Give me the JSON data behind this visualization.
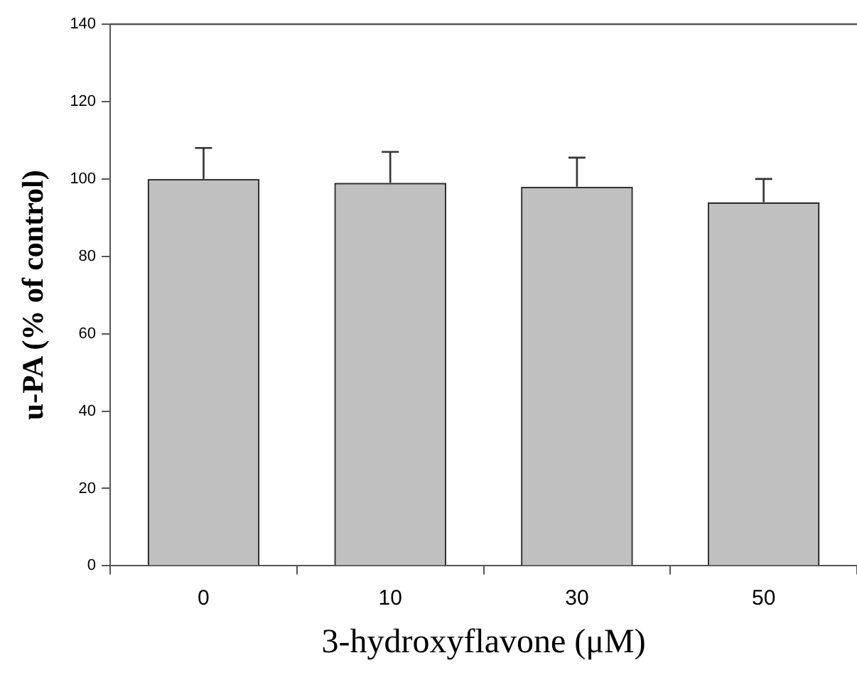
{
  "chart_data": {
    "type": "bar",
    "xlabel": "3-hydroxyflavone (μM)",
    "ylabel": "u-PA (% of control)",
    "categories": [
      "0",
      "10",
      "30",
      "50"
    ],
    "values": [
      100,
      99,
      98,
      94
    ],
    "errors": [
      [
        100,
        108
      ],
      [
        99,
        107
      ],
      [
        98,
        105.5
      ],
      [
        94,
        100
      ]
    ],
    "color": "#c0c0c0",
    "ylim": [
      0,
      140
    ],
    "yticks": [
      0,
      20,
      40,
      60,
      80,
      100,
      120,
      140
    ],
    "grid": false,
    "legend": false
  }
}
